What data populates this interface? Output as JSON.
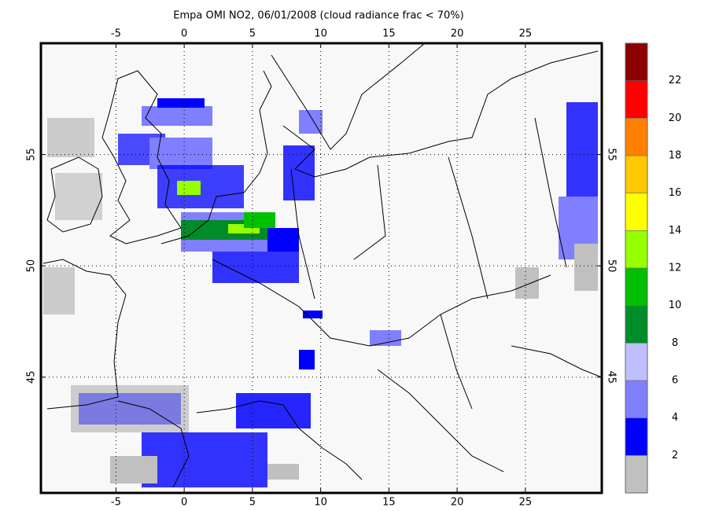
{
  "map": {
    "title": "Empa OMI NO2, 06/01/2008 (cloud radiance frac < 70%)",
    "xlim": [
      -10.5,
      30.6
    ],
    "ylim": [
      39.8,
      60
    ],
    "lon_ticks": [
      -5,
      0,
      5,
      10,
      15,
      20,
      25
    ],
    "lat_ticks": [
      45,
      50,
      55
    ],
    "colorbar": {
      "levels": [
        2,
        4,
        6,
        8,
        10,
        12,
        14,
        16,
        18,
        20,
        22
      ],
      "colors": [
        "#c0c0c0",
        "#0000ff",
        "#7f7fff",
        "#bfbfff",
        "#008c28",
        "#00c000",
        "#96ff00",
        "#ffff00",
        "#ffc800",
        "#ff8000",
        "#ff0000",
        "#8b0000"
      ]
    }
  }
}
